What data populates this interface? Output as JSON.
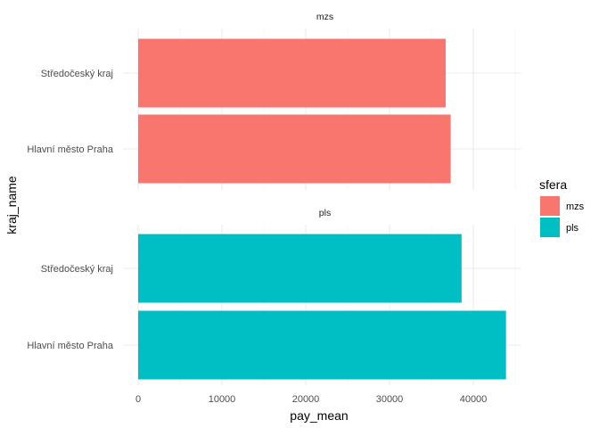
{
  "chart_data": {
    "type": "bar",
    "orientation": "horizontal",
    "xlabel": "pay_mean",
    "ylabel": "kraj_name",
    "xlim": [
      0,
      46000
    ],
    "xticks": [
      0,
      10000,
      20000,
      30000,
      40000
    ],
    "xtick_labels": [
      "0",
      "10000",
      "20000",
      "30000",
      "40000"
    ],
    "grid": true,
    "legend": {
      "title": "sfera",
      "position": "right",
      "entries": [
        {
          "label": "mzs",
          "color": "#F8766D"
        },
        {
          "label": "pls",
          "color": "#00BFC4"
        }
      ]
    },
    "categories": [
      "Středočeský kraj",
      "Hlavní město Praha"
    ],
    "facets": [
      {
        "label": "mzs",
        "color": "#F8766D",
        "values": [
          36700,
          37300
        ]
      },
      {
        "label": "pls",
        "color": "#00BFC4",
        "values": [
          38600,
          43900
        ]
      }
    ]
  }
}
